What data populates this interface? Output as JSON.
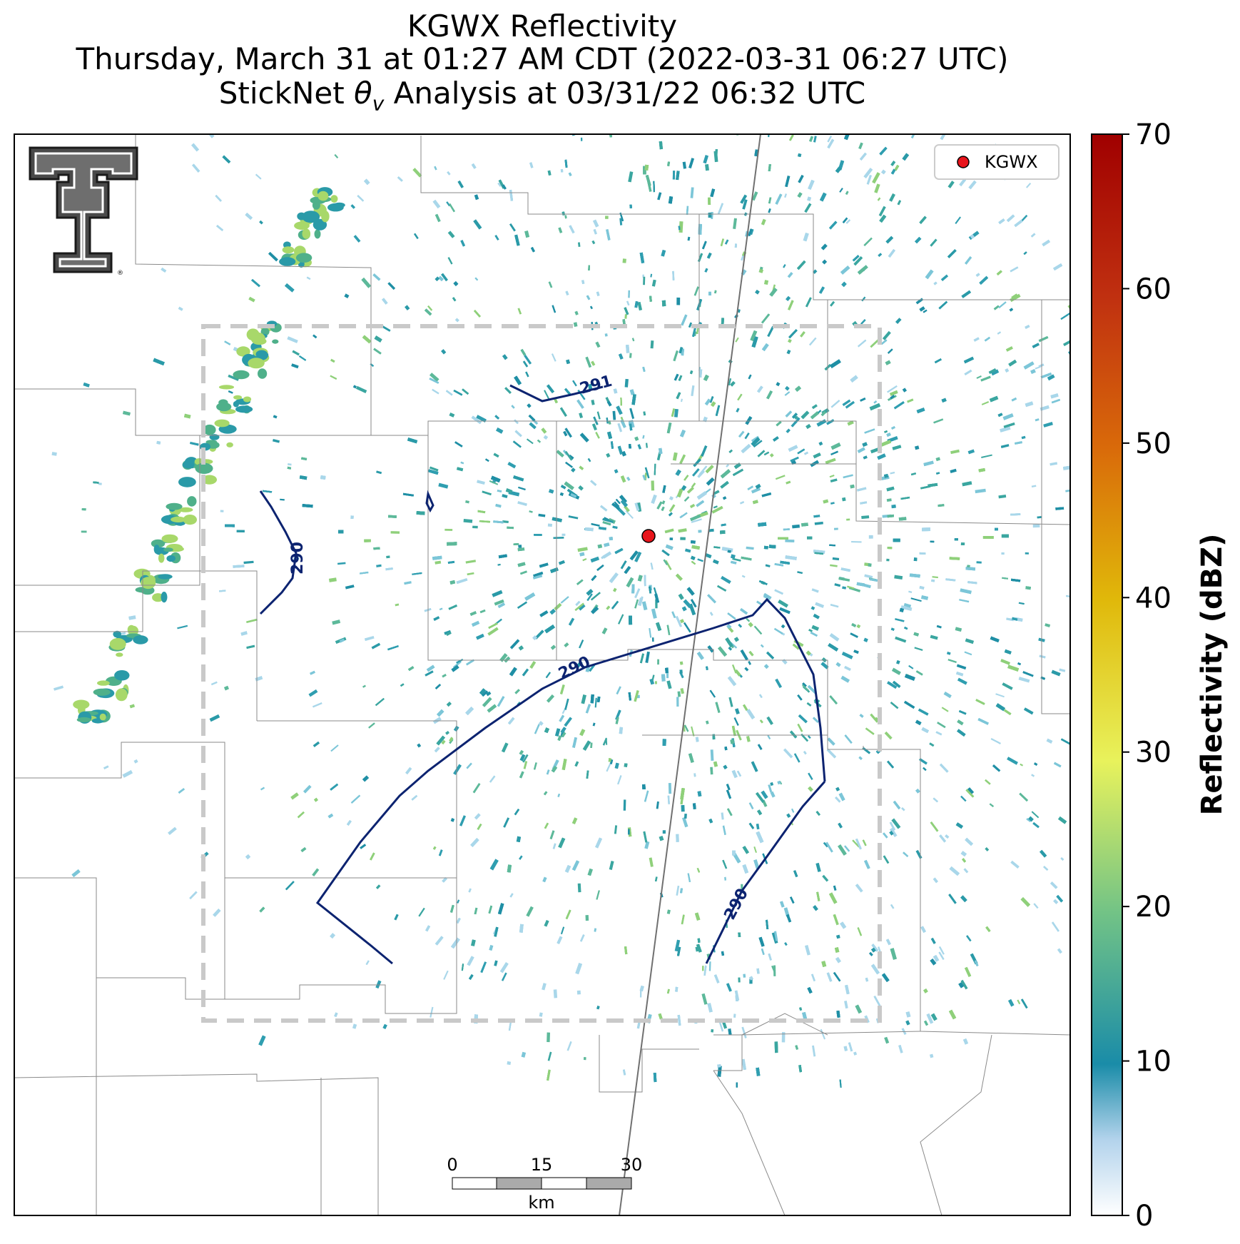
{
  "title": {
    "line1": "KGWX Reflectivity",
    "line2": "Thursday, March 31 at 01:27 AM CDT (2022-03-31 06:27 UTC)",
    "line3_prefix": "StickNet ",
    "line3_theta": "θ",
    "line3_sub": "v",
    "line3_suffix": " Analysis at 03/31/22 06:32 UTC"
  },
  "legend": {
    "label": "KGWX",
    "marker_color": "#e8141b"
  },
  "radar": {
    "name": "KGWX"
  },
  "colorbar": {
    "label": "Reflectivity (dBZ)",
    "ticks": [
      "0",
      "10",
      "20",
      "30",
      "40",
      "50",
      "60",
      "70"
    ],
    "range": [
      0,
      70
    ],
    "colors": [
      "#ffffff",
      "#b3d3ec",
      "#1a8ca8",
      "#4fb08a",
      "#9fdc72",
      "#e8f25c",
      "#e0b80a",
      "#d96a0a",
      "#c03010",
      "#a00000"
    ]
  },
  "contours": [
    {
      "value": "290",
      "label": "290"
    },
    {
      "value": "290",
      "label": "290"
    },
    {
      "value": "290",
      "label": "290"
    },
    {
      "value": "291",
      "label": "291"
    }
  ],
  "scale_bar": {
    "ticks": [
      "0",
      "15",
      "30"
    ],
    "unit": "km"
  },
  "logo": {
    "icon": "texas-tech-double-t-logo"
  },
  "colors": {
    "contour": "#0c2370",
    "analysis_box": "#c8c8c8",
    "county_lines": "#777777",
    "echo_main": "#2a9aa8",
    "echo_light": "#7cc6d8",
    "echo_strong": "#8fd07a"
  }
}
